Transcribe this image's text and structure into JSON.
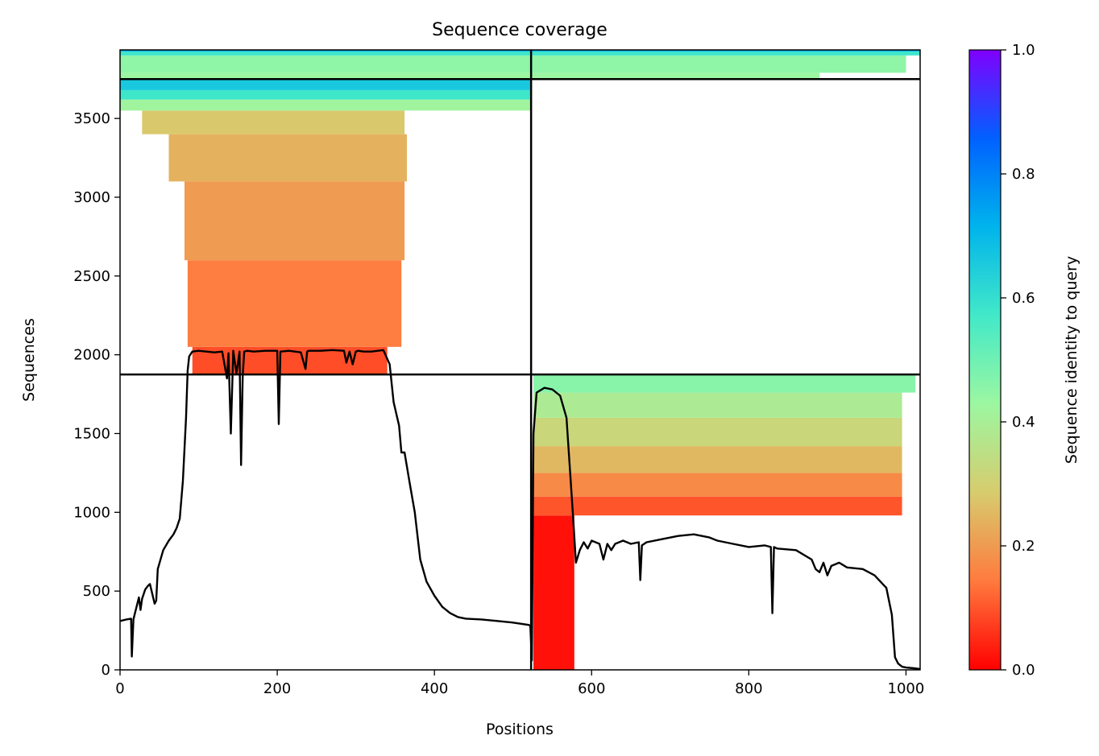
{
  "chart_data": {
    "type": "heatmap",
    "title": "Sequence coverage",
    "xlabel": "Positions",
    "ylabel": "Sequences",
    "xlim": [
      0,
      1018
    ],
    "ylim": [
      0,
      3935
    ],
    "xticks": [
      "0",
      "200",
      "400",
      "600",
      "800",
      "1000"
    ],
    "yticks": [
      "0",
      "500",
      "1000",
      "1500",
      "2000",
      "2500",
      "3000",
      "3500"
    ],
    "colorbar": {
      "label": "Sequence identity to query",
      "range": [
        0.0,
        1.0
      ],
      "ticks": [
        "0.0",
        "0.2",
        "0.4",
        "0.6",
        "0.8",
        "1.0"
      ],
      "colormap": "rainbow_r",
      "stops": [
        "#ff0000",
        "#ff7a3e",
        "#d7cc6e",
        "#9cf7a1",
        "#42e9c8",
        "#00b4ec",
        "#0061ff",
        "#8000ff"
      ]
    },
    "dividers": {
      "x_boundary": 523,
      "y_boundaries": [
        1875,
        3750
      ]
    },
    "coverage_blocks": [
      {
        "name": "chain-1 block",
        "x_range": [
          0,
          523
        ],
        "y_range": [
          1875,
          3750
        ],
        "rows": [
          {
            "y0": 1875,
            "y1": 2050,
            "x0": 92,
            "x1": 340,
            "identity": 0.09
          },
          {
            "y0": 2050,
            "y1": 2600,
            "x0": 86,
            "x1": 358,
            "identity": 0.15
          },
          {
            "y0": 2600,
            "y1": 3100,
            "x0": 82,
            "x1": 362,
            "identity": 0.2
          },
          {
            "y0": 3100,
            "y1": 3400,
            "x0": 62,
            "x1": 365,
            "identity": 0.24
          },
          {
            "y0": 3400,
            "y1": 3550,
            "x0": 28,
            "x1": 362,
            "identity": 0.28
          },
          {
            "y0": 3550,
            "y1": 3620,
            "x0": 0,
            "x1": 523,
            "identity": 0.42
          },
          {
            "y0": 3620,
            "y1": 3680,
            "x0": 0,
            "x1": 523,
            "identity": 0.58
          },
          {
            "y0": 3680,
            "y1": 3750,
            "x0": 0,
            "x1": 523,
            "identity": 0.66
          }
        ]
      },
      {
        "name": "chain-2 block",
        "x_range": [
          523,
          1018
        ],
        "y_range": [
          0,
          1875
        ],
        "rows": [
          {
            "y0": 0,
            "y1": 980,
            "x0": 526,
            "x1": 578,
            "identity": 0.02
          },
          {
            "y0": 980,
            "y1": 1100,
            "x0": 526,
            "x1": 995,
            "identity": 0.1
          },
          {
            "y0": 1100,
            "y1": 1250,
            "x0": 526,
            "x1": 995,
            "identity": 0.17
          },
          {
            "y0": 1250,
            "y1": 1420,
            "x0": 526,
            "x1": 995,
            "identity": 0.25
          },
          {
            "y0": 1420,
            "y1": 1600,
            "x0": 526,
            "x1": 995,
            "identity": 0.32
          },
          {
            "y0": 1600,
            "y1": 1760,
            "x0": 526,
            "x1": 995,
            "identity": 0.39
          },
          {
            "y0": 1760,
            "y1": 1875,
            "x0": 526,
            "x1": 1012,
            "identity": 0.46
          }
        ]
      },
      {
        "name": "paired block",
        "x_range": [
          0,
          1018
        ],
        "y_range": [
          3750,
          3935
        ],
        "rows": [
          {
            "y0": 3750,
            "y1": 3790,
            "x0": 0,
            "x1": 890,
            "identity": 0.43
          },
          {
            "y0": 3790,
            "y1": 3900,
            "x0": 0,
            "x1": 1000,
            "identity": 0.45
          },
          {
            "y0": 3900,
            "y1": 3925,
            "x0": 0,
            "x1": 1018,
            "identity": 0.58
          },
          {
            "y0": 3925,
            "y1": 3935,
            "x0": 0,
            "x1": 1018,
            "identity": 0.72
          }
        ]
      }
    ],
    "coverage_line": {
      "x": [
        0,
        8,
        14,
        15,
        17,
        19,
        24,
        26,
        28,
        32,
        35,
        38,
        44,
        46,
        48,
        55,
        62,
        68,
        72,
        76,
        80,
        84,
        86,
        88,
        92,
        100,
        110,
        120,
        130,
        136,
        138,
        141,
        144,
        148,
        152,
        154,
        156,
        158,
        162,
        170,
        185,
        200,
        202,
        204,
        215,
        230,
        236,
        238,
        240,
        255,
        270,
        285,
        288,
        292,
        296,
        300,
        303,
        310,
        320,
        335,
        343,
        348,
        355,
        358,
        362,
        368,
        375,
        382,
        390,
        400,
        410,
        420,
        430,
        440,
        460,
        480,
        500,
        520,
        522,
        524,
        526,
        530,
        540,
        550,
        560,
        568,
        572,
        576,
        580,
        585,
        590,
        595,
        600,
        610,
        615,
        620,
        625,
        630,
        640,
        650,
        660,
        662,
        664,
        670,
        690,
        710,
        730,
        750,
        760,
        780,
        800,
        820,
        828,
        830,
        832,
        836,
        860,
        880,
        885,
        890,
        895,
        900,
        905,
        915,
        925,
        945,
        960,
        975,
        982,
        986,
        990,
        995,
        1000,
        1010,
        1018
      ],
      "y": [
        310,
        320,
        325,
        85,
        320,
        360,
        460,
        380,
        450,
        510,
        530,
        545,
        420,
        440,
        640,
        760,
        820,
        860,
        900,
        960,
        1200,
        1600,
        1900,
        1990,
        2020,
        2025,
        2020,
        2015,
        2020,
        1850,
        2010,
        1500,
        2025,
        1880,
        2020,
        1300,
        1860,
        2020,
        2025,
        2020,
        2025,
        2025,
        1560,
        2020,
        2025,
        2015,
        1910,
        2020,
        2025,
        2025,
        2030,
        2025,
        1950,
        2020,
        1940,
        2020,
        2025,
        2020,
        2020,
        2030,
        1940,
        1700,
        1550,
        1380,
        1380,
        1200,
        1000,
        700,
        560,
        470,
        400,
        360,
        335,
        325,
        320,
        310,
        300,
        285,
        280,
        60,
        1500,
        1760,
        1790,
        1780,
        1740,
        1600,
        1300,
        1000,
        680,
        760,
        810,
        770,
        820,
        800,
        700,
        800,
        760,
        800,
        820,
        800,
        810,
        570,
        790,
        810,
        830,
        850,
        860,
        840,
        820,
        800,
        780,
        790,
        780,
        360,
        780,
        770,
        760,
        700,
        640,
        620,
        680,
        600,
        660,
        680,
        650,
        640,
        600,
        520,
        350,
        80,
        40,
        20,
        15,
        10,
        5,
        0
      ]
    }
  }
}
